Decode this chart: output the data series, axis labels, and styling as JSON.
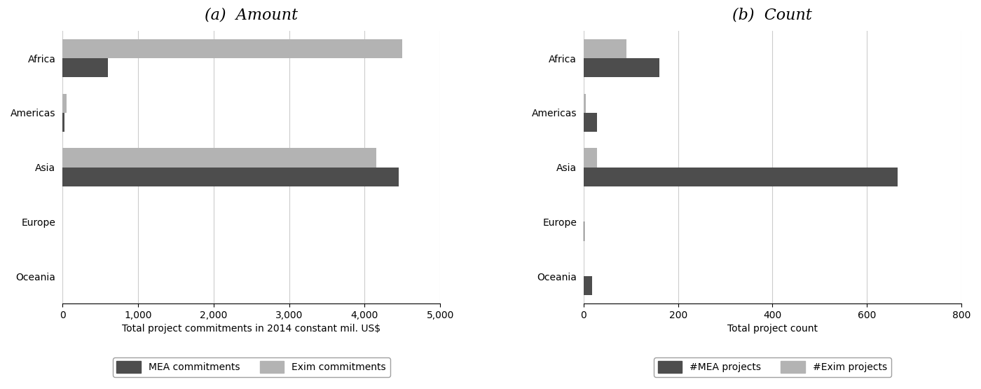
{
  "categories": [
    "Africa",
    "Americas",
    "Asia",
    "Europe",
    "Oceania"
  ],
  "amount_mea": [
    600,
    30,
    4450,
    0,
    0
  ],
  "amount_exim": [
    4500,
    50,
    4150,
    0,
    0
  ],
  "count_mea": [
    160,
    28,
    665,
    2,
    18
  ],
  "count_exim": [
    90,
    5,
    28,
    0,
    0
  ],
  "title_a": "(a)  Amount",
  "title_b": "(b)  Count",
  "xlabel_a": "Total project commitments in 2014 constant mil. US$",
  "xlabel_b": "Total project count",
  "xlim_a": [
    0,
    5000
  ],
  "xlim_b": [
    0,
    800
  ],
  "xticks_a": [
    0,
    1000,
    2000,
    3000,
    4000,
    5000
  ],
  "xtick_labels_a": [
    "0",
    "1,000",
    "2,000",
    "3,000",
    "4,000",
    "5,000"
  ],
  "xticks_b": [
    0,
    200,
    400,
    600,
    800
  ],
  "xtick_labels_b": [
    "0",
    "200",
    "400",
    "600",
    "800"
  ],
  "legend_a": [
    "MEA commitments",
    "Exim commitments"
  ],
  "legend_b": [
    "#MEA projects",
    "#Exim projects"
  ],
  "color_mea": "#4d4d4d",
  "color_exim": "#b3b3b3",
  "bg_color": "#ffffff",
  "bar_height": 0.35,
  "title_fontsize": 16,
  "axis_label_fontsize": 10,
  "tick_fontsize": 10,
  "legend_fontsize": 10
}
